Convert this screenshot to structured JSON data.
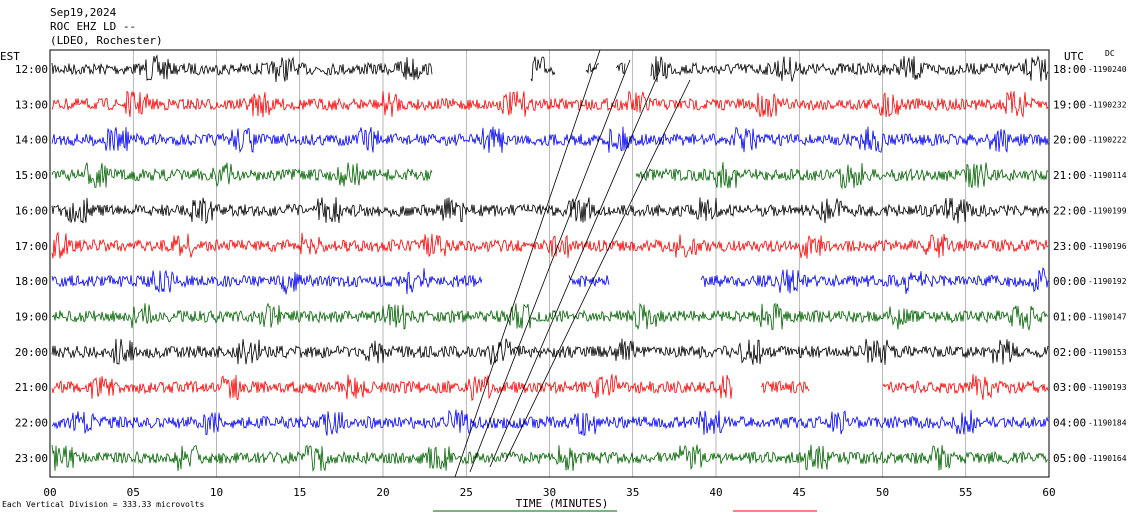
{
  "header": [
    "Sep19,2024",
    "ROC EHZ LD --",
    "(LDEO, Rochester)"
  ],
  "left_title": "EST",
  "right_title": "UTC",
  "dc_label": "DC",
  "rows": [
    {
      "est": "12:00",
      "utc": "18:00",
      "dc": "-1190240",
      "color": "#000000"
    },
    {
      "est": "13:00",
      "utc": "19:00",
      "dc": "-1190232",
      "color": "#ff0000"
    },
    {
      "est": "14:00",
      "utc": "20:00",
      "dc": "-1190222",
      "color": "#0000ff"
    },
    {
      "est": "15:00",
      "utc": "21:00",
      "dc": "-1190114",
      "color": "#006400"
    },
    {
      "est": "16:00",
      "utc": "22:00",
      "dc": "-1190199",
      "color": "#000000"
    },
    {
      "est": "17:00",
      "utc": "23:00",
      "dc": "-1190196",
      "color": "#ff0000"
    },
    {
      "est": "18:00",
      "utc": "00:00",
      "dc": "-1190192",
      "color": "#0000ff"
    },
    {
      "est": "19:00",
      "utc": "01:00",
      "dc": "-1190147",
      "color": "#006400"
    },
    {
      "est": "20:00",
      "utc": "02:00",
      "dc": "-1190153",
      "color": "#000000"
    },
    {
      "est": "21:00",
      "utc": "03:00",
      "dc": "-1190193",
      "color": "#ff0000"
    },
    {
      "est": "22:00",
      "utc": "04:00",
      "dc": "-1190184",
      "color": "#0000ff"
    },
    {
      "est": "23:00",
      "utc": "05:00",
      "dc": "-1190164",
      "color": "#006400"
    }
  ],
  "x_axis": {
    "label": "TIME (MINUTES)",
    "ticks": [
      "00",
      "05",
      "10",
      "15",
      "20",
      "25",
      "30",
      "35",
      "40",
      "45",
      "50",
      "55",
      "60"
    ]
  },
  "footer": "Each Vertical Division = 333.33 microvolts"
}
